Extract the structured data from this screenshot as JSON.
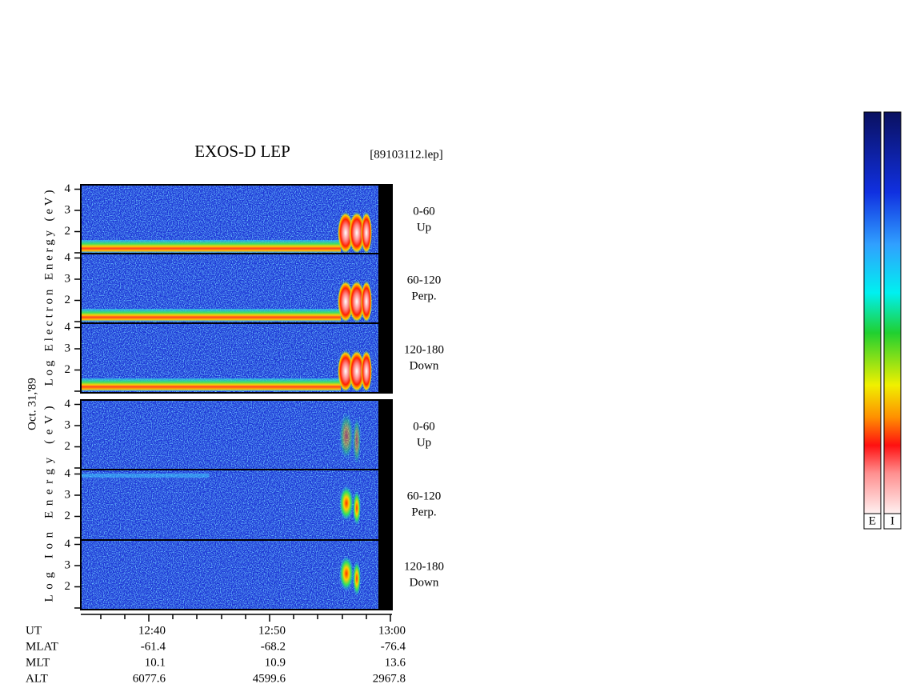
{
  "header": {
    "title": "EXOS-D LEP",
    "file": "[89103112.lep]"
  },
  "date": "Oct. 31,'89",
  "electron": {
    "ylabel": "Log  Electron  Energy (eV)",
    "panels": [
      {
        "range": "0-60",
        "direction": "Up",
        "yticks": [
          4,
          3,
          2
        ]
      },
      {
        "range": "60-120",
        "direction": "Perp.",
        "yticks": [
          4,
          3,
          2
        ]
      },
      {
        "range": "120-180",
        "direction": "Down",
        "yticks": [
          4,
          3,
          2
        ]
      }
    ]
  },
  "ion": {
    "ylabel": "Log  Ion  Energy (eV)",
    "panels": [
      {
        "range": "0-60",
        "direction": "Up",
        "yticks": [
          4,
          3,
          2
        ]
      },
      {
        "range": "60-120",
        "direction": "Perp.",
        "yticks": [
          4,
          3,
          2
        ]
      },
      {
        "range": "120-180",
        "direction": "Down",
        "yticks": [
          4,
          3,
          2
        ]
      }
    ]
  },
  "orbit": {
    "rows": [
      {
        "label": "UT",
        "values": [
          "12:40",
          "12:50",
          "13:00"
        ]
      },
      {
        "label": "MLAT",
        "values": [
          -61.4,
          -68.2,
          -76.4
        ]
      },
      {
        "label": "MLT",
        "values": [
          10.1,
          10.9,
          13.6
        ]
      },
      {
        "label": "ALT",
        "values": [
          6077.6,
          4599.6,
          2967.8
        ]
      }
    ]
  },
  "colorbar": {
    "labels": [
      "E",
      "I"
    ]
  }
}
